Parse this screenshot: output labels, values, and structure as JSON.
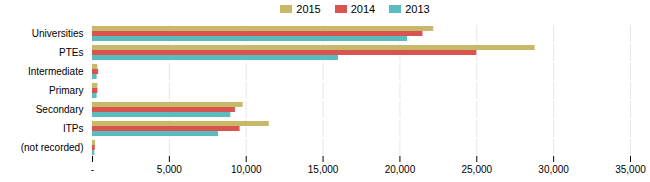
{
  "chart_data": {
    "type": "bar",
    "orientation": "horizontal",
    "categories": [
      "Universities",
      "PTEs",
      "Intermediate",
      "Primary",
      "Secondary",
      "ITPs",
      "(not recorded)"
    ],
    "series": [
      {
        "name": "2015",
        "color": "#c8b96a",
        "values": [
          22200,
          28800,
          350,
          350,
          9800,
          11500,
          200
        ]
      },
      {
        "name": "2014",
        "color": "#d9534f",
        "values": [
          21500,
          25000,
          400,
          350,
          9300,
          9600,
          180
        ]
      },
      {
        "name": "2013",
        "color": "#5bbcbf",
        "values": [
          20500,
          16000,
          300,
          300,
          9000,
          8200,
          150
        ]
      }
    ],
    "xlim": [
      0,
      35000
    ],
    "xticks": [
      {
        "value": 0,
        "label": "-"
      },
      {
        "value": 5000,
        "label": "5,000"
      },
      {
        "value": 10000,
        "label": "10,000"
      },
      {
        "value": 15000,
        "label": "15,000"
      },
      {
        "value": 20000,
        "label": "20,000"
      },
      {
        "value": 25000,
        "label": "25,000"
      },
      {
        "value": 30000,
        "label": "30,000"
      },
      {
        "value": 35000,
        "label": "35,000"
      }
    ],
    "grid": true,
    "legend": "top"
  }
}
